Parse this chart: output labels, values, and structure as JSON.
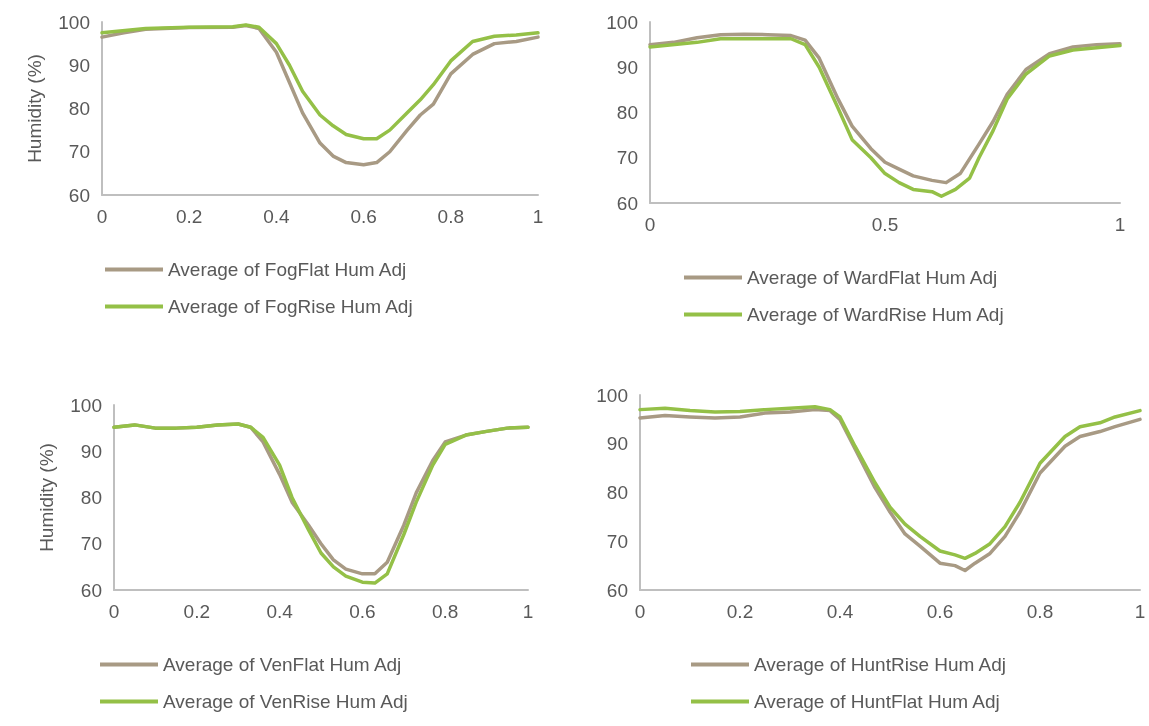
{
  "chart_data": [
    {
      "type": "line",
      "ylabel": "Humidity (%)",
      "xlim": [
        0,
        1
      ],
      "xticks": [
        0,
        0.2,
        0.4,
        0.6,
        0.8,
        1
      ],
      "ylim": [
        60,
        100
      ],
      "yticks": [
        60,
        70,
        80,
        90,
        100
      ],
      "grid": false,
      "legend": "bottom",
      "marker": "none",
      "line_style": "solid",
      "series": [
        {
          "name": "Average of FogFlat Hum Adj",
          "color": "#a89a84",
          "x": [
            0,
            0.05,
            0.1,
            0.2,
            0.3,
            0.33,
            0.36,
            0.4,
            0.43,
            0.46,
            0.5,
            0.53,
            0.56,
            0.6,
            0.63,
            0.66,
            0.7,
            0.73,
            0.76,
            0.8,
            0.85,
            0.9,
            0.95,
            1
          ],
          "values": [
            96.5,
            97.5,
            98.3,
            98.7,
            98.8,
            99.2,
            98.5,
            93,
            86,
            79,
            72,
            69,
            67.5,
            67,
            67.5,
            70,
            75,
            78.5,
            81,
            88,
            92.5,
            95,
            95.5,
            96.5
          ]
        },
        {
          "name": "Average of FogRise Hum Adj",
          "color": "#94c047",
          "x": [
            0,
            0.1,
            0.2,
            0.3,
            0.33,
            0.36,
            0.4,
            0.43,
            0.46,
            0.5,
            0.53,
            0.56,
            0.6,
            0.63,
            0.66,
            0.7,
            0.73,
            0.76,
            0.8,
            0.85,
            0.9,
            0.95,
            1
          ],
          "values": [
            97.5,
            98.5,
            98.8,
            98.9,
            99.3,
            98.8,
            95,
            90,
            84,
            78.5,
            76,
            74,
            73,
            73,
            75,
            79,
            82,
            85.5,
            91,
            95.5,
            96.7,
            97,
            97.5
          ]
        }
      ]
    },
    {
      "type": "line",
      "xlim": [
        0,
        1
      ],
      "xticks": [
        0,
        0.5,
        1
      ],
      "ylim": [
        60,
        100
      ],
      "yticks": [
        60,
        70,
        80,
        90,
        100
      ],
      "grid": false,
      "legend": "bottom",
      "marker": "none",
      "line_style": "solid",
      "series": [
        {
          "name": "Average of WardFlat Hum Adj",
          "color": "#a89a84",
          "x": [
            0,
            0.05,
            0.1,
            0.15,
            0.2,
            0.25,
            0.3,
            0.33,
            0.36,
            0.4,
            0.43,
            0.47,
            0.5,
            0.53,
            0.56,
            0.6,
            0.63,
            0.66,
            0.7,
            0.73,
            0.76,
            0.8,
            0.85,
            0.9,
            0.95,
            1
          ],
          "values": [
            95,
            95.5,
            96.5,
            97.2,
            97.3,
            97.2,
            97,
            96,
            92,
            83,
            77,
            72,
            69,
            67.5,
            66,
            65,
            64.5,
            66.5,
            73,
            78,
            84,
            89.5,
            93,
            94.5,
            95,
            95.2
          ]
        },
        {
          "name": "Average of WardRise Hum Adj",
          "color": "#94c047",
          "x": [
            0,
            0.1,
            0.15,
            0.2,
            0.3,
            0.33,
            0.36,
            0.4,
            0.43,
            0.47,
            0.5,
            0.53,
            0.56,
            0.6,
            0.62,
            0.65,
            0.68,
            0.7,
            0.73,
            0.76,
            0.8,
            0.85,
            0.9,
            0.95,
            1
          ],
          "values": [
            94.5,
            95.5,
            96.3,
            96.3,
            96.3,
            95,
            90,
            81,
            74,
            70,
            66.5,
            64.5,
            63,
            62.5,
            61.5,
            63,
            65.5,
            70,
            76,
            83,
            88.5,
            92.5,
            93.8,
            94.3,
            94.8
          ]
        }
      ]
    },
    {
      "type": "line",
      "ylabel": "Humidity (%)",
      "xlim": [
        0,
        1
      ],
      "xticks": [
        0,
        0.2,
        0.4,
        0.6,
        0.8,
        1
      ],
      "ylim": [
        60,
        100
      ],
      "yticks": [
        60,
        70,
        80,
        90,
        100
      ],
      "grid": false,
      "legend": "bottom",
      "marker": "none",
      "line_style": "solid",
      "series": [
        {
          "name": "Average of VenFlat Hum Adj",
          "color": "#a89a84",
          "x": [
            0,
            0.05,
            0.1,
            0.15,
            0.2,
            0.25,
            0.3,
            0.33,
            0.36,
            0.4,
            0.43,
            0.47,
            0.5,
            0.53,
            0.56,
            0.6,
            0.63,
            0.66,
            0.7,
            0.73,
            0.77,
            0.8,
            0.85,
            0.9,
            0.95,
            1
          ],
          "values": [
            95.2,
            95.7,
            95,
            95,
            95.2,
            95.7,
            95.9,
            95.2,
            92,
            85,
            79,
            74,
            70,
            66.5,
            64.5,
            63.5,
            63.5,
            66,
            74,
            81,
            88,
            92,
            93.5,
            94.3,
            95,
            95.2
          ]
        },
        {
          "name": "Average of VenRise Hum Adj",
          "color": "#94c047",
          "x": [
            0,
            0.05,
            0.1,
            0.15,
            0.2,
            0.25,
            0.3,
            0.33,
            0.36,
            0.4,
            0.43,
            0.47,
            0.5,
            0.53,
            0.56,
            0.6,
            0.63,
            0.66,
            0.7,
            0.73,
            0.77,
            0.8,
            0.85,
            0.9,
            0.95,
            1
          ],
          "values": [
            95.2,
            95.7,
            95,
            95,
            95.2,
            95.7,
            95.9,
            95.2,
            93,
            87,
            80,
            73,
            68,
            65,
            63,
            61.7,
            61.5,
            63.5,
            72,
            79,
            87,
            91.5,
            93.5,
            94.3,
            95,
            95.2
          ]
        }
      ]
    },
    {
      "type": "line",
      "xlim": [
        0,
        1
      ],
      "xticks": [
        0,
        0.2,
        0.4,
        0.6,
        0.8,
        1
      ],
      "ylim": [
        60,
        100
      ],
      "yticks": [
        60,
        70,
        80,
        90,
        100
      ],
      "grid": false,
      "legend": "bottom",
      "marker": "none",
      "line_style": "solid",
      "series": [
        {
          "name": "Average of HuntRise Hum Adj",
          "color": "#a89a84",
          "x": [
            0,
            0.05,
            0.1,
            0.15,
            0.2,
            0.25,
            0.3,
            0.35,
            0.38,
            0.4,
            0.43,
            0.47,
            0.5,
            0.53,
            0.56,
            0.6,
            0.63,
            0.65,
            0.67,
            0.7,
            0.73,
            0.76,
            0.8,
            0.85,
            0.88,
            0.92,
            0.95,
            1
          ],
          "values": [
            95.3,
            95.8,
            95.5,
            95.3,
            95.5,
            96.3,
            96.5,
            97,
            96.8,
            95,
            89,
            81,
            76,
            71.5,
            69,
            65.5,
            65,
            64,
            65.5,
            67.5,
            71,
            76,
            84,
            89.5,
            91.5,
            92.5,
            93.5,
            95
          ]
        },
        {
          "name": "Average of HuntFlat Hum Adj",
          "color": "#94c047",
          "x": [
            0,
            0.05,
            0.1,
            0.15,
            0.2,
            0.25,
            0.3,
            0.35,
            0.38,
            0.4,
            0.43,
            0.47,
            0.5,
            0.53,
            0.56,
            0.6,
            0.63,
            0.65,
            0.67,
            0.7,
            0.73,
            0.76,
            0.8,
            0.85,
            0.88,
            0.92,
            0.95,
            1
          ],
          "values": [
            97,
            97.3,
            96.8,
            96.5,
            96.6,
            97,
            97.3,
            97.6,
            97,
            95.5,
            89.5,
            82,
            77,
            73.5,
            71,
            68,
            67.2,
            66.5,
            67.5,
            69.5,
            73,
            78,
            86,
            91.5,
            93.5,
            94.3,
            95.5,
            96.8
          ]
        }
      ]
    }
  ]
}
